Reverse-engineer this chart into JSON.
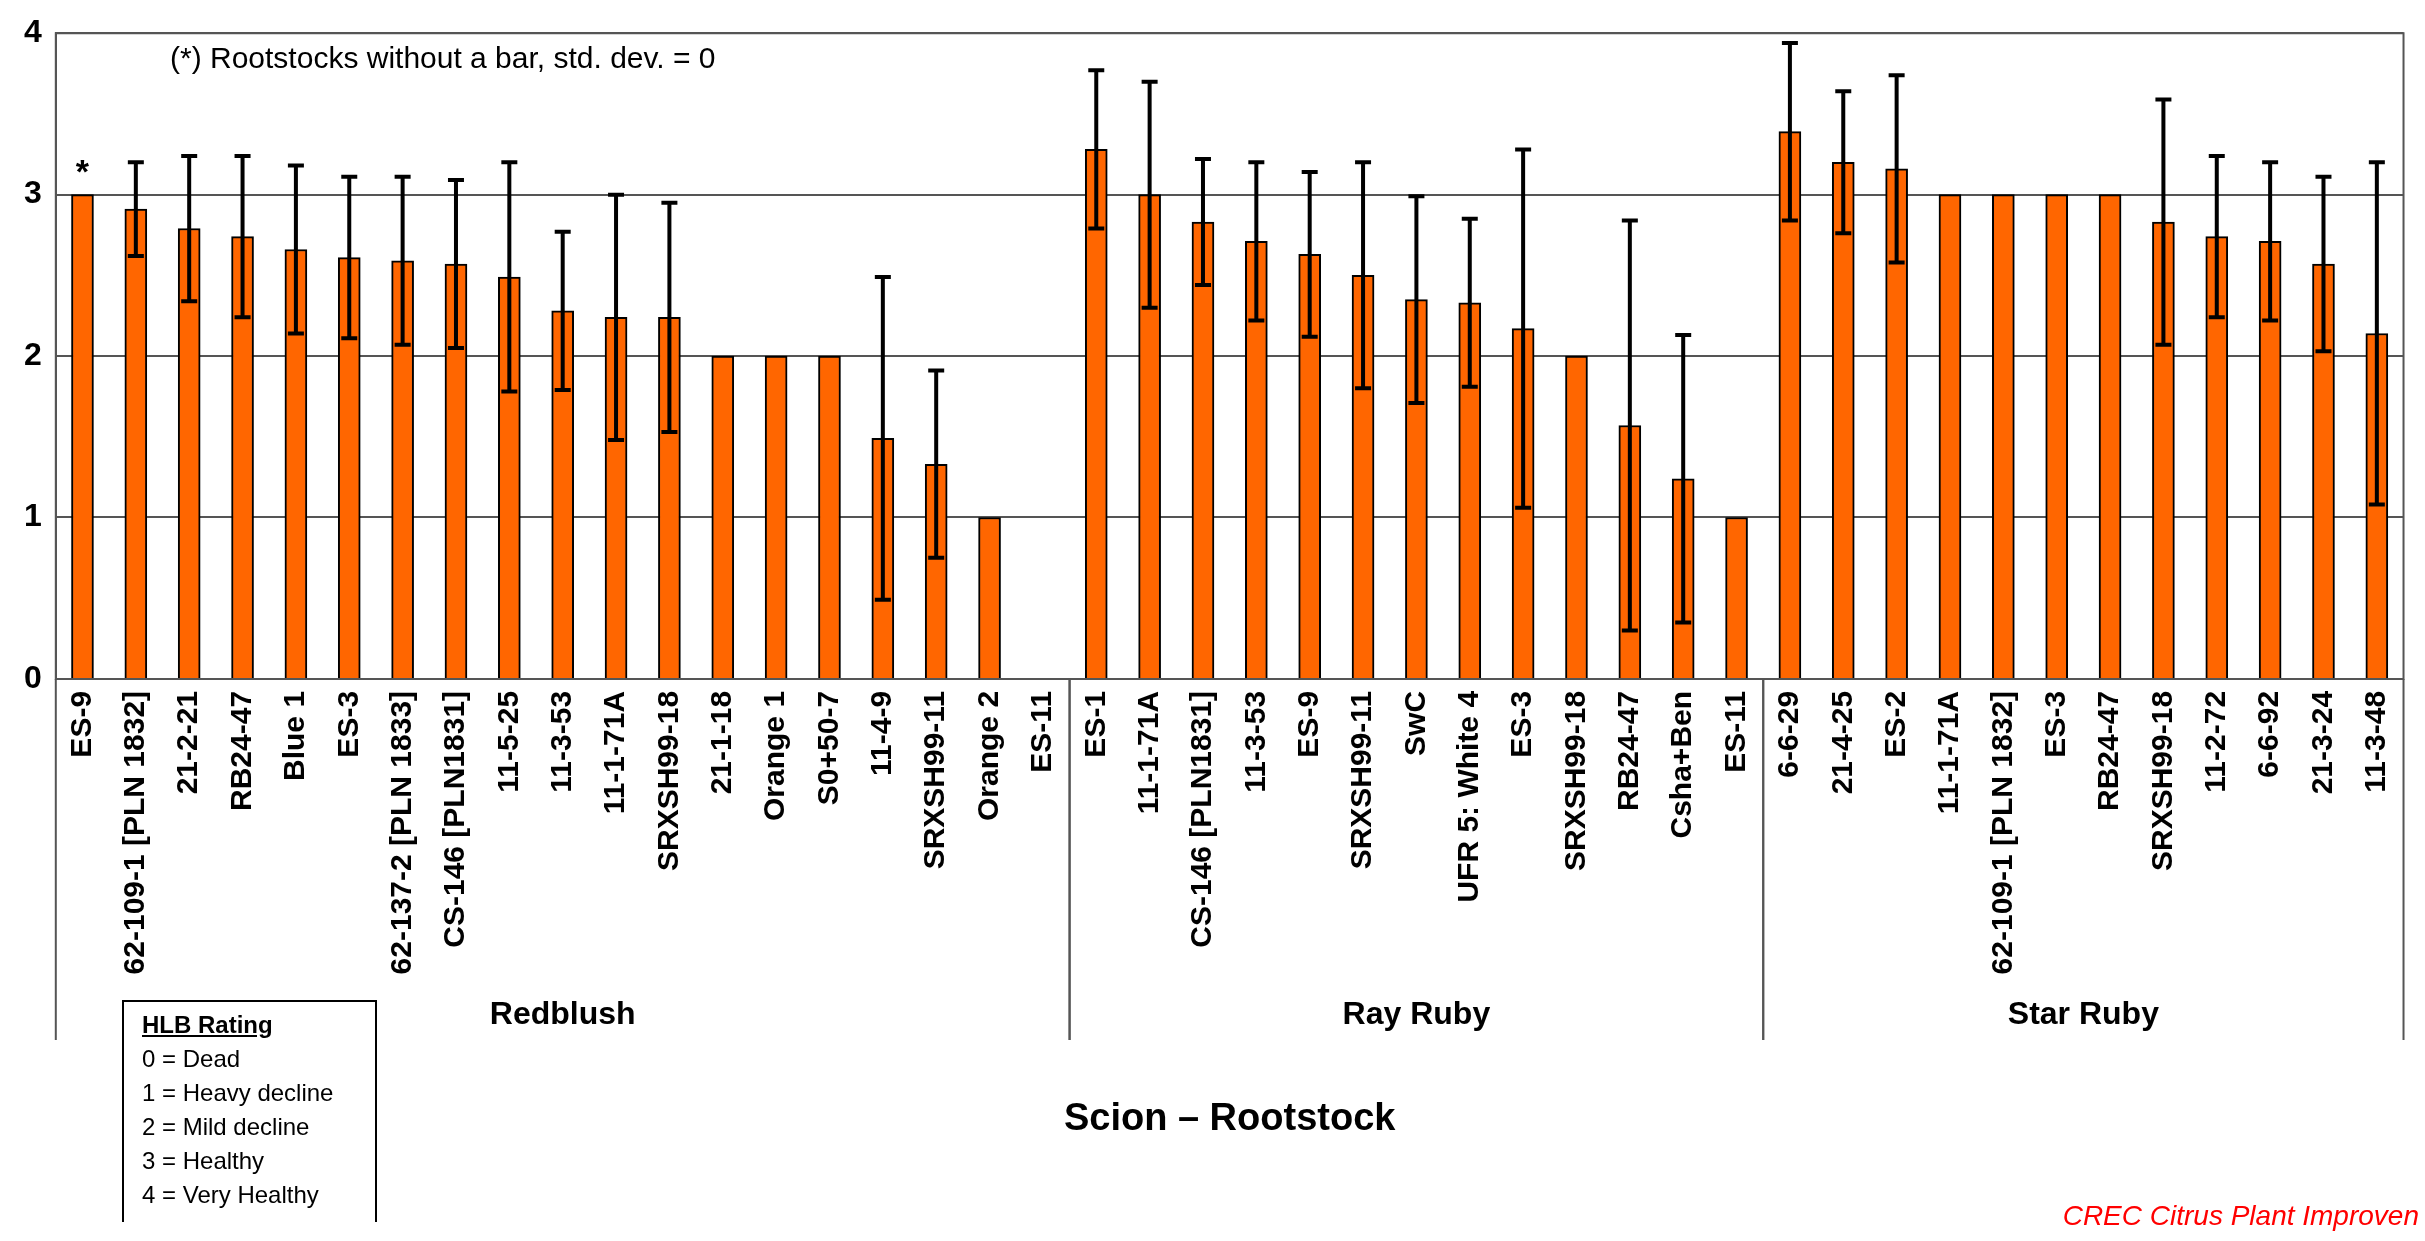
{
  "chart_data": {
    "type": "bar",
    "xlabel": "Scion – Rootstock",
    "categories": [
      "ES-9",
      "62-109-1 [PLN 1832]",
      "21-2-21",
      "RB24-47",
      "Blue 1",
      "ES-3",
      "62-137-2 [PLN 1833]",
      "CS-146 [PLN1831]",
      "11-5-25",
      "11-3-53",
      "11-1-71A",
      "SRXSH99-18",
      "21-1-18",
      "Orange 1",
      "S0+50-7",
      "11-4-9",
      "SRXSH99-11",
      "Orange 2",
      "ES-11",
      "ES-1",
      "11-1-71A",
      "CS-146 [PLN1831]",
      "11-3-53",
      "ES-9",
      "SRXSH99-11",
      "SwC",
      "UFR 5: White 4",
      "ES-3",
      "SRXSH99-18",
      "RB24-47",
      "Csha+Ben",
      "ES-11",
      "6-6-29",
      "21-4-25",
      "ES-2",
      "11-1-71A",
      "62-109-1 [PLN 1832]",
      "ES-3",
      "RB24-47",
      "SRXSH99-18",
      "11-2-72",
      "6-6-92",
      "21-3-24",
      "11-3-48"
    ],
    "values": [
      3.0,
      2.91,
      2.79,
      2.74,
      2.66,
      2.61,
      2.59,
      2.57,
      2.49,
      2.28,
      2.24,
      2.24,
      2.0,
      2.0,
      2.0,
      1.49,
      1.33,
      1.0,
      0,
      3.28,
      3.0,
      2.83,
      2.71,
      2.63,
      2.5,
      2.35,
      2.33,
      2.17,
      2.0,
      1.57,
      1.24,
      1.0,
      3.39,
      3.2,
      3.16,
      3.0,
      3.0,
      3.0,
      3.0,
      2.83,
      2.74,
      2.71,
      2.57,
      2.14
    ],
    "errors": [
      null,
      0.29,
      0.45,
      0.5,
      0.52,
      0.5,
      0.52,
      0.52,
      0.71,
      0.49,
      0.76,
      0.71,
      null,
      null,
      null,
      1.0,
      0.58,
      null,
      null,
      0.49,
      0.7,
      0.39,
      0.49,
      0.51,
      0.7,
      0.64,
      0.52,
      1.11,
      null,
      1.27,
      0.89,
      null,
      0.55,
      0.44,
      0.58,
      null,
      null,
      null,
      null,
      0.76,
      0.5,
      0.49,
      0.54,
      1.06
    ],
    "color": "#ff6600",
    "ylim": [
      0,
      4
    ],
    "yticks": [
      0,
      1,
      2,
      3,
      4
    ],
    "grid": "y",
    "legend": false,
    "annotations": [
      "(*) Rootstocks without a bar, std. dev. = 0",
      {
        "text": "*",
        "x": "ES-9",
        "y": 3
      },
      "Redblush",
      "Ray Ruby",
      "Star Ruby",
      "HLB Rating",
      "0 = Dead",
      "1 = Heavy decline",
      "2 = Mild decline",
      "3 = Healthy",
      "4 = Very Healthy",
      "CREC Citrus Plant Improven"
    ]
  }
}
